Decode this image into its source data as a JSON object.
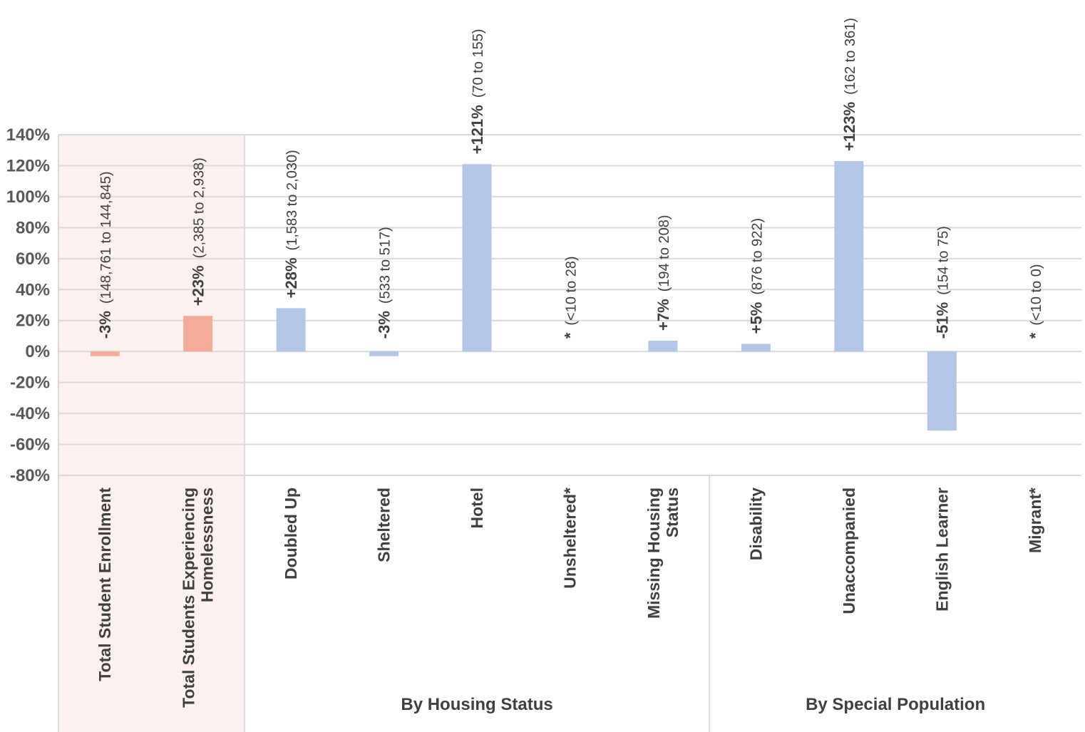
{
  "chart_data": {
    "type": "bar",
    "title": "",
    "xlabel": "",
    "ylabel": "",
    "ylim": [
      -80,
      140
    ],
    "y_ticks": [
      "140%",
      "120%",
      "100%",
      "80%",
      "60%",
      "40%",
      "20%",
      "0%",
      "-20%",
      "-40%",
      "-60%",
      "-80%"
    ],
    "grid": true,
    "colors": {
      "total": "#f4ac98",
      "subgroup": "#b4c6e7",
      "highlight_panel": "#fdf1f0",
      "grid": "#d9d9d9"
    },
    "categories": [
      "Total Student Enrollment",
      "Total Students Experiencing Homelessness",
      "Doubled Up",
      "Sheltered",
      "Hotel",
      "Unsheltered*",
      "Missing Housing Status",
      "Disability",
      "Unaccompanied",
      "English Learner",
      "Migrant*"
    ],
    "values": [
      -3,
      23,
      28,
      -3,
      121,
      null,
      7,
      5,
      123,
      -51,
      null
    ],
    "pct_labels": [
      "-3%",
      "+23%",
      "+28%",
      "-3%",
      "+121%",
      "*",
      "+7%",
      "+5%",
      "+123%",
      "-51%",
      "*"
    ],
    "count_labels": [
      "(148,761 to 144,845)",
      "(2,385 to 2,938)",
      "(1,583 to 2,030)",
      "(533 to 517)",
      "(70 to 155)",
      "(<10 to 28)",
      "(194 to 208)",
      "(876 to 922)",
      "(162 to 361)",
      "(154 to 75)",
      "(<10 to 0)"
    ],
    "series_group": [
      "total",
      "total",
      "subgroup",
      "subgroup",
      "subgroup",
      "subgroup",
      "subgroup",
      "subgroup",
      "subgroup",
      "subgroup",
      "subgroup"
    ],
    "groups": [
      {
        "label": "",
        "categories": [
          0,
          1
        ]
      },
      {
        "label": "By Housing Status",
        "categories": [
          2,
          3,
          4,
          5,
          6
        ]
      },
      {
        "label": "By Special Population",
        "categories": [
          7,
          8,
          9,
          10
        ]
      }
    ]
  }
}
